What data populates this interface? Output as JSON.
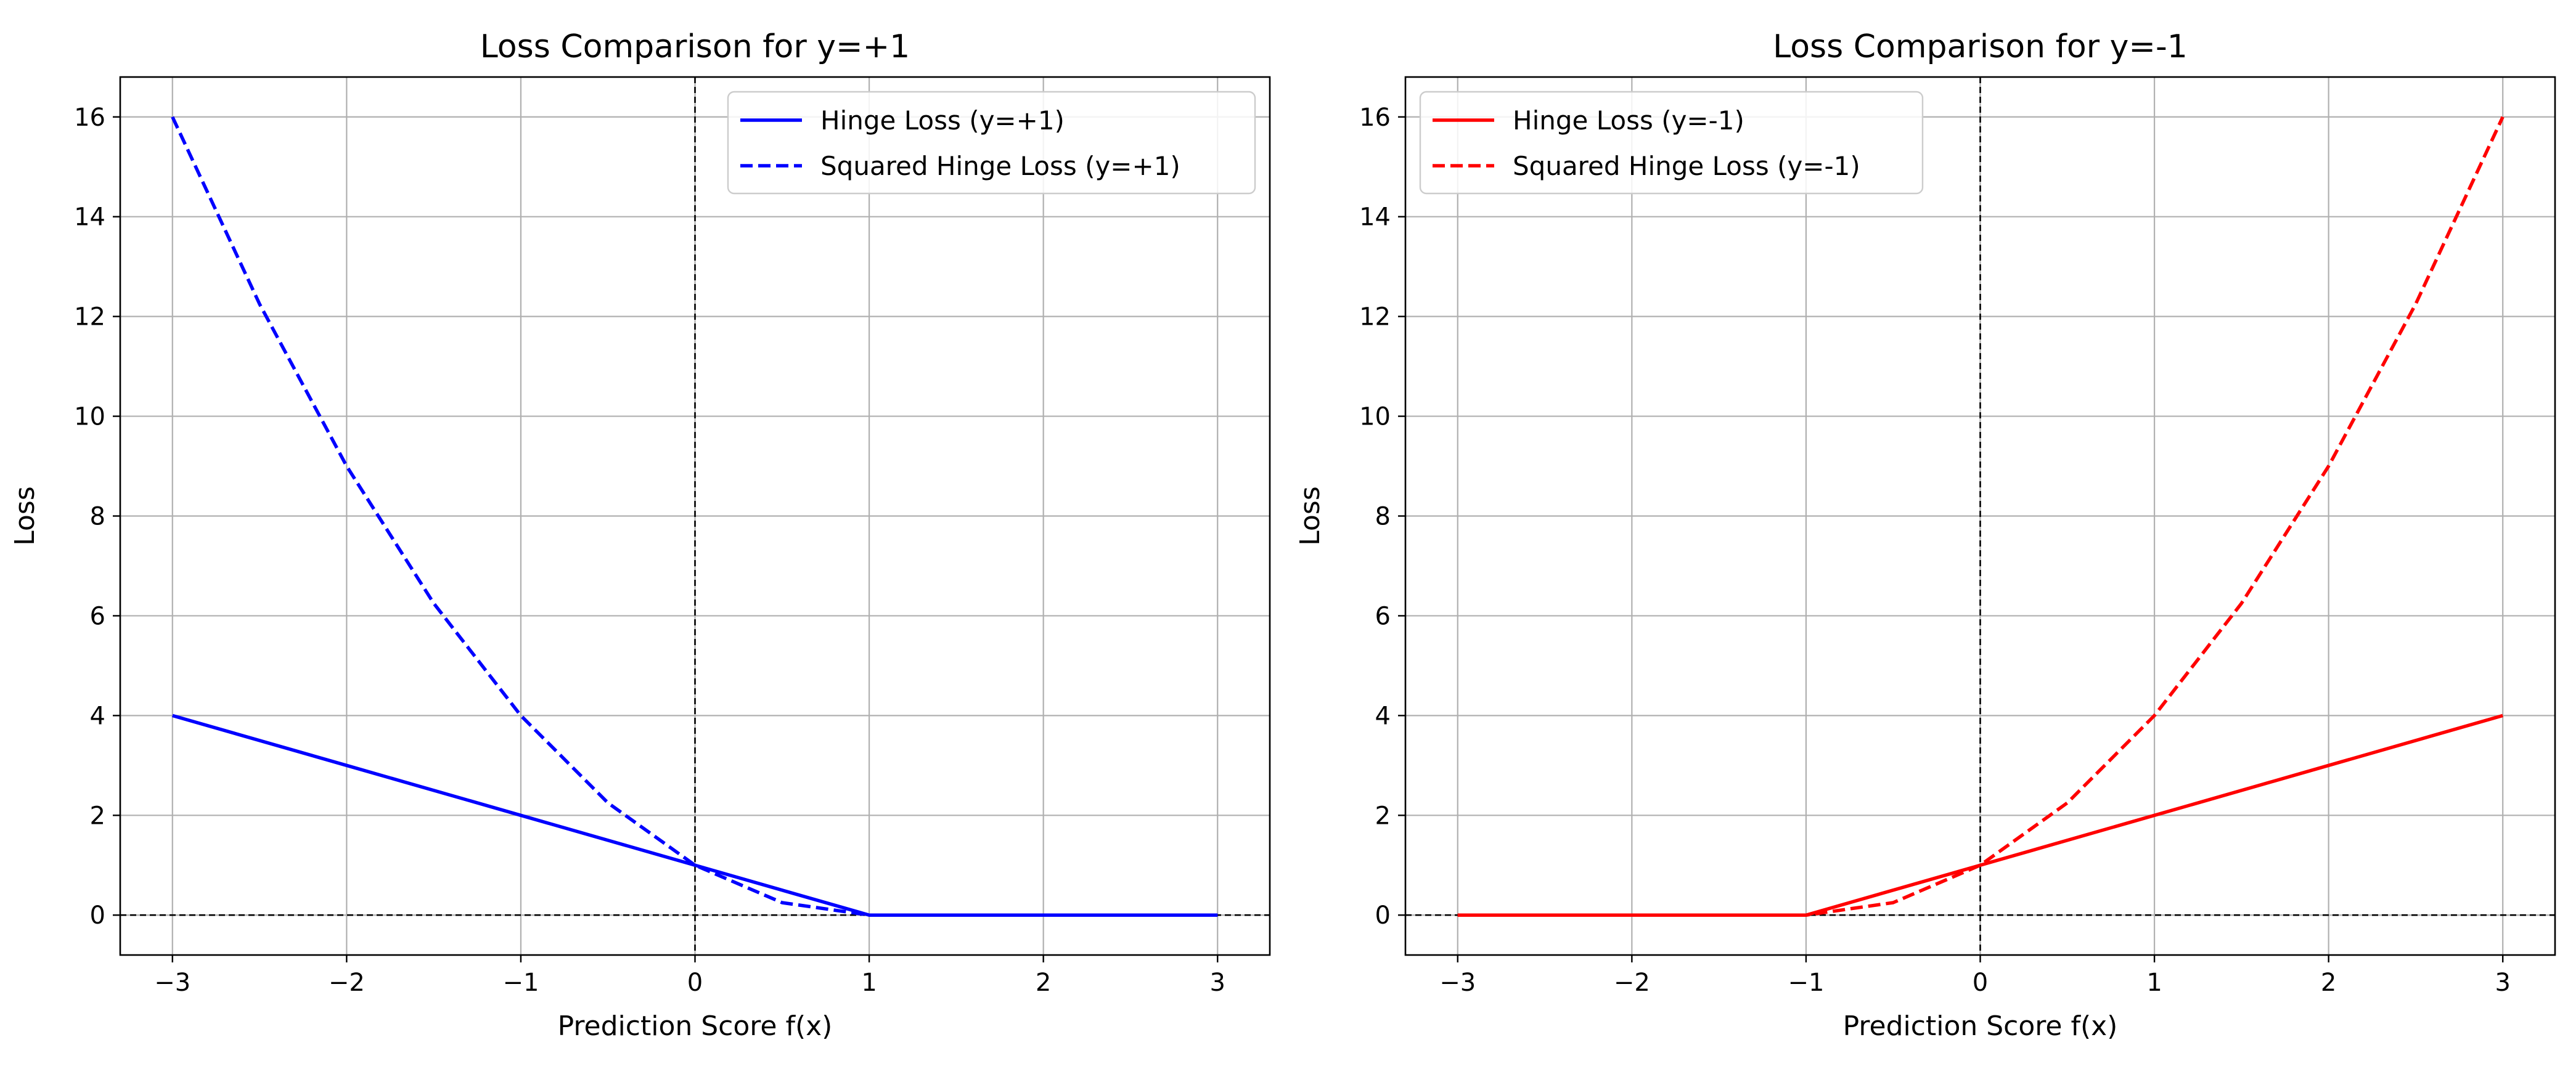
{
  "chart_data": [
    {
      "type": "line",
      "title": "Loss Comparison for y=+1",
      "xlabel": "Prediction Score f(x)",
      "ylabel": "Loss",
      "xlim": [
        -3.3,
        3.3
      ],
      "ylim": [
        -0.8,
        16.8
      ],
      "xticks": [
        -3,
        -2,
        -1,
        0,
        1,
        2,
        3
      ],
      "xtick_labels": [
        "−3",
        "−2",
        "−1",
        "0",
        "1",
        "2",
        "3"
      ],
      "yticks": [
        0,
        2,
        4,
        6,
        8,
        10,
        12,
        14,
        16
      ],
      "ytick_labels": [
        "0",
        "2",
        "4",
        "6",
        "8",
        "10",
        "12",
        "14",
        "16"
      ],
      "grid": true,
      "legend_position": "top-right",
      "reference_lines": {
        "vertical_x": 0,
        "horizontal_y": 0,
        "style": "dashed",
        "color": "#000000"
      },
      "series": [
        {
          "name": "Hinge Loss (y=+1)",
          "color": "#0000ff",
          "style": "solid",
          "x": [
            -3,
            -2,
            -1,
            0,
            1,
            2,
            3
          ],
          "y": [
            4,
            3,
            2,
            1,
            0,
            0,
            0
          ]
        },
        {
          "name": "Squared Hinge Loss (y=+1)",
          "color": "#0000ff",
          "style": "dashed",
          "x": [
            -3,
            -2.5,
            -2,
            -1.5,
            -1,
            -0.5,
            0,
            0.5,
            1,
            2,
            3
          ],
          "y": [
            16,
            12.25,
            9,
            6.25,
            4,
            2.25,
            1,
            0.25,
            0,
            0,
            0
          ]
        }
      ]
    },
    {
      "type": "line",
      "title": "Loss Comparison for y=-1",
      "xlabel": "Prediction Score f(x)",
      "ylabel": "Loss",
      "xlim": [
        -3.3,
        3.3
      ],
      "ylim": [
        -0.8,
        16.8
      ],
      "xticks": [
        -3,
        -2,
        -1,
        0,
        1,
        2,
        3
      ],
      "xtick_labels": [
        "−3",
        "−2",
        "−1",
        "0",
        "1",
        "2",
        "3"
      ],
      "yticks": [
        0,
        2,
        4,
        6,
        8,
        10,
        12,
        14,
        16
      ],
      "ytick_labels": [
        "0",
        "2",
        "4",
        "6",
        "8",
        "10",
        "12",
        "14",
        "16"
      ],
      "grid": true,
      "legend_position": "top-left",
      "reference_lines": {
        "vertical_x": 0,
        "horizontal_y": 0,
        "style": "dashed",
        "color": "#000000"
      },
      "series": [
        {
          "name": "Hinge Loss (y=-1)",
          "color": "#ff0000",
          "style": "solid",
          "x": [
            -3,
            -2,
            -1,
            0,
            1,
            2,
            3
          ],
          "y": [
            0,
            0,
            0,
            1,
            2,
            3,
            4
          ]
        },
        {
          "name": "Squared Hinge Loss (y=-1)",
          "color": "#ff0000",
          "style": "dashed",
          "x": [
            -3,
            -2,
            -1,
            -0.5,
            0,
            0.5,
            1,
            1.5,
            2,
            2.5,
            3
          ],
          "y": [
            0,
            0,
            0,
            0.25,
            1,
            2.25,
            4,
            6.25,
            9,
            12.25,
            16
          ]
        }
      ]
    }
  ]
}
